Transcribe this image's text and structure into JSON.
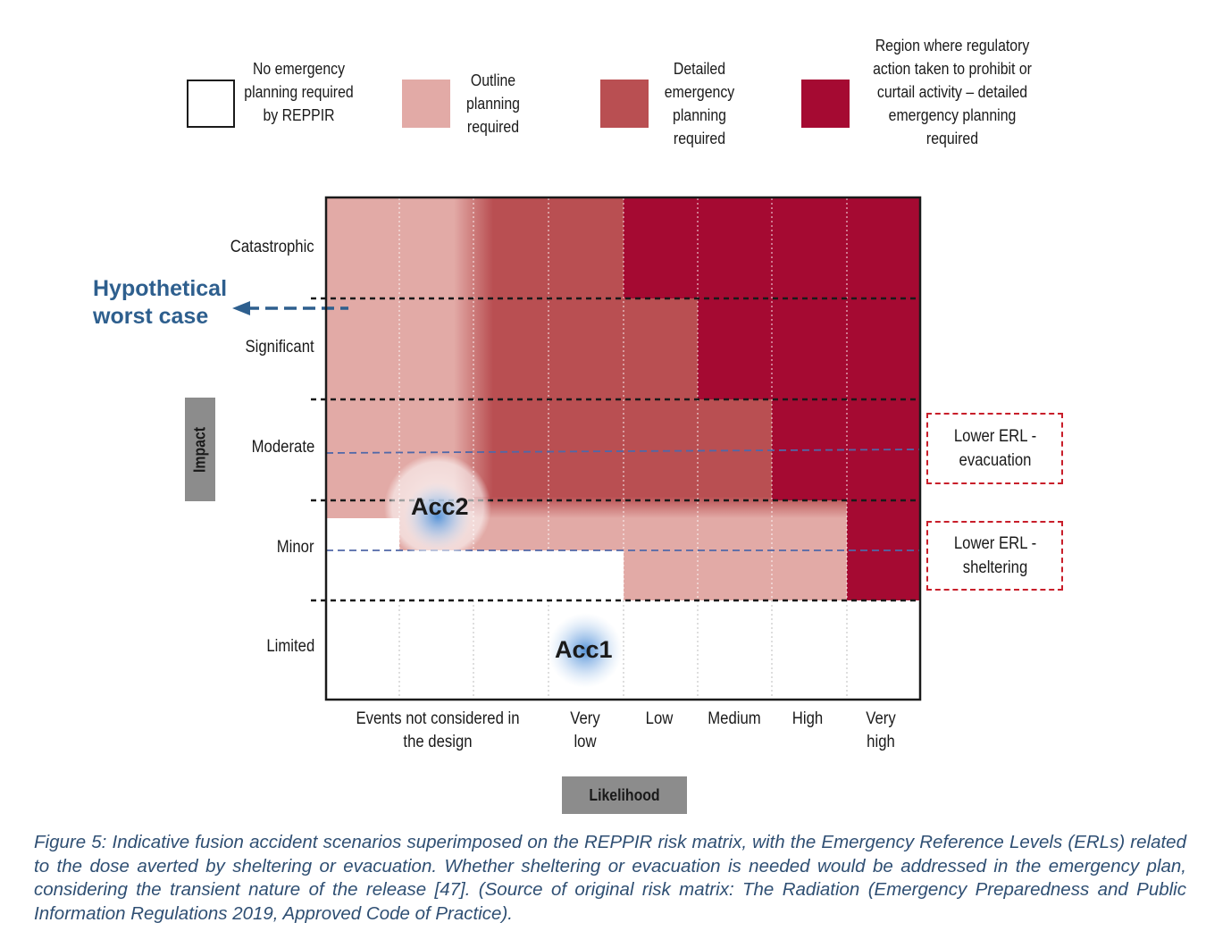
{
  "legend": [
    {
      "text": "No emergency planning required by REPPIR",
      "color": "#ffffff"
    },
    {
      "text": "Outline planning required",
      "color": "#e2aaa6"
    },
    {
      "text": "Detailed emergency planning required",
      "color": "#b94f52"
    },
    {
      "text": "Region where regulatory action taken to prohibit or curtail activity – detailed emergency  planning required",
      "color": "#a50a32"
    }
  ],
  "matrix": {
    "impact_levels": [
      "Catastrophic",
      "Significant",
      "Moderate",
      "Minor",
      "Limited"
    ],
    "likelihood_levels": [
      "Events not considered in the design",
      "Very low",
      "Low",
      "Medium",
      "High",
      "Very high"
    ],
    "y_axis_title": "Impact",
    "x_axis_title": "Likelihood"
  },
  "annotations": {
    "hypothetical": "Hypothetical worst case",
    "acc1": "Acc1",
    "acc2": "Acc2",
    "erl_evacuation": "Lower ERL - evacuation",
    "erl_sheltering": "Lower ERL - sheltering"
  },
  "caption": "Figure 5: Indicative fusion accident scenarios superimposed on the REPPIR risk matrix, with the Emergency Reference Levels (ERLs) related to the dose averted by sheltering or evacuation. Whether sheltering or evacuation is needed would be addressed in the emergency plan, considering the transient nature of the release [47]. (Source of original risk matrix:  The Radiation (Emergency Preparedness and Public Information Regulations 2019, Approved Code of Practice).",
  "colors": {
    "outline": "#e2aaa6",
    "detailed": "#b94f52",
    "regulatory": "#a50a32",
    "hypothetical_text": "#2e5f8e",
    "erl_border": "#c81e2a",
    "caption_text": "#2f4f73"
  }
}
